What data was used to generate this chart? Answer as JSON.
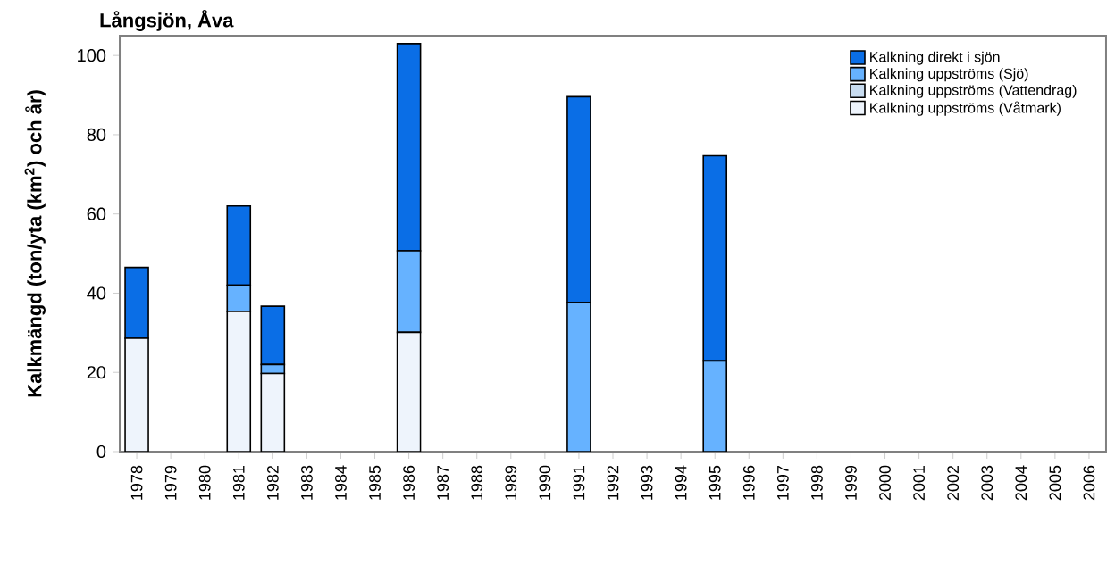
{
  "chart_data": {
    "type": "bar",
    "stacked": true,
    "title": "Långsjön, Åva",
    "ylabel": "Kalkmängd (ton/yta (km$^{2}$) och år)",
    "categories": [
      "1978",
      "1979",
      "1980",
      "1981",
      "1982",
      "1983",
      "1984",
      "1985",
      "1986",
      "1987",
      "1988",
      "1989",
      "1990",
      "1991",
      "1992",
      "1993",
      "1994",
      "1995",
      "1996",
      "1997",
      "1998",
      "1999",
      "2000",
      "2001",
      "2002",
      "2003",
      "2004",
      "2005",
      "2006"
    ],
    "series": [
      {
        "name": "Kalkning uppströms (Våtmark)",
        "color": "#eef4fc",
        "values": [
          28.6,
          null,
          null,
          35.4,
          19.7,
          null,
          null,
          null,
          30.1,
          null,
          null,
          null,
          null,
          null,
          null,
          null,
          null,
          null,
          null,
          null,
          null,
          null,
          null,
          null,
          null,
          null,
          null,
          null,
          null
        ]
      },
      {
        "name": "Kalkning uppströms (Vattendrag)",
        "color": "#c8dcf0",
        "values": [
          null,
          null,
          null,
          null,
          null,
          null,
          null,
          null,
          null,
          null,
          null,
          null,
          null,
          null,
          null,
          null,
          null,
          null,
          null,
          null,
          null,
          null,
          null,
          null,
          null,
          null,
          null,
          null,
          null
        ]
      },
      {
        "name": "Kalkning uppströms (Sjö)",
        "color": "#66b2ff",
        "values": [
          null,
          null,
          null,
          6.6,
          2.3,
          null,
          null,
          null,
          20.6,
          null,
          null,
          null,
          null,
          37.6,
          null,
          null,
          null,
          22.9,
          null,
          null,
          null,
          null,
          null,
          null,
          null,
          null,
          null,
          null,
          null
        ]
      },
      {
        "name": "Kalkning direkt i sjön",
        "color": "#0a6ee6",
        "values": [
          17.9,
          null,
          null,
          20.0,
          14.7,
          null,
          null,
          null,
          52.3,
          null,
          null,
          null,
          null,
          52.0,
          null,
          null,
          null,
          51.8,
          null,
          null,
          null,
          null,
          null,
          null,
          null,
          null,
          null,
          null,
          null
        ]
      }
    ],
    "ylim": [
      0,
      105
    ],
    "yticks": [
      0,
      20,
      40,
      60,
      80,
      100
    ],
    "grid": false,
    "legend": "top right"
  }
}
